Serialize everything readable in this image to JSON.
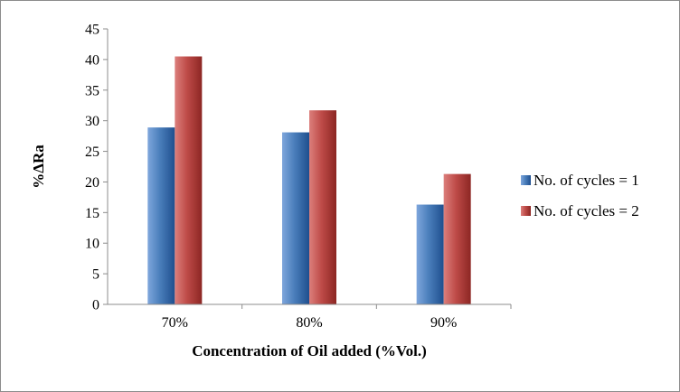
{
  "chart_data": {
    "type": "bar",
    "categories": [
      "70%",
      "80%",
      "90%"
    ],
    "series": [
      {
        "name": "No. of cycles = 1",
        "values": [
          28.9,
          28.1,
          16.3
        ],
        "color": "#4a7ebb",
        "highlight": "#7ea6dc",
        "shade": "#1f4f8e"
      },
      {
        "name": "No. of cycles = 2",
        "values": [
          40.5,
          31.7,
          21.3
        ],
        "color": "#be4b48",
        "highlight": "#dc7f7c",
        "shade": "#8c2623"
      }
    ],
    "title": "",
    "xlabel": "Concentration of Oil added (%Vol.)",
    "ylabel": "%ΔRa",
    "ylim": [
      0,
      45
    ],
    "yticks": [
      "0",
      "5",
      "10",
      "15",
      "20",
      "25",
      "30",
      "35",
      "40",
      "45"
    ],
    "grid": false,
    "legend_position": "right"
  }
}
